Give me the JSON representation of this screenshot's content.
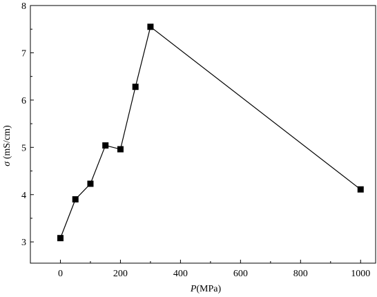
{
  "chart_data": {
    "type": "line",
    "title": "",
    "xlabel": {
      "symbol": "P",
      "unit": "(MPa)"
    },
    "ylabel": {
      "symbol": "σ",
      "unit": " (mS/cm)"
    },
    "xlim": [
      -100,
      1050
    ],
    "ylim": [
      2.55,
      8
    ],
    "xticks": [
      0,
      200,
      400,
      600,
      800,
      1000
    ],
    "yticks": [
      3,
      4,
      5,
      6,
      7,
      8
    ],
    "grid": false,
    "legend": "none",
    "marker": "square",
    "color": "#000000",
    "series": [
      {
        "points": [
          {
            "x": 0,
            "y": 3.08
          },
          {
            "x": 50,
            "y": 3.9
          },
          {
            "x": 100,
            "y": 4.23
          },
          {
            "x": 150,
            "y": 5.04
          },
          {
            "x": 200,
            "y": 4.96
          },
          {
            "x": 250,
            "y": 6.28
          },
          {
            "x": 300,
            "y": 7.55
          },
          {
            "x": 1000,
            "y": 4.11
          }
        ]
      }
    ]
  }
}
